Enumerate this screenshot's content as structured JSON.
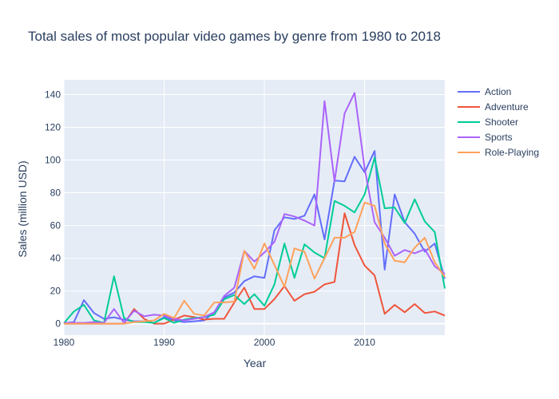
{
  "chart_data": {
    "type": "line",
    "title": "Total sales of most popular video games by genre from 1980 to 2018",
    "xlabel": "Year",
    "ylabel": "Sales (million USD)",
    "xlim": [
      1980,
      2018
    ],
    "ylim": [
      -7,
      149
    ],
    "x_ticks": [
      1980,
      1990,
      2000,
      2010
    ],
    "y_ticks": [
      0,
      20,
      40,
      60,
      80,
      100,
      120,
      140
    ],
    "grid": true,
    "legend_position": "top-right",
    "x": [
      1980,
      1981,
      1982,
      1983,
      1984,
      1985,
      1986,
      1987,
      1988,
      1989,
      1990,
      1991,
      1992,
      1993,
      1994,
      1995,
      1996,
      1997,
      1998,
      1999,
      2000,
      2001,
      2002,
      2003,
      2004,
      2005,
      2006,
      2007,
      2008,
      2009,
      2010,
      2011,
      2012,
      2013,
      2014,
      2015,
      2016,
      2017,
      2018
    ],
    "series": [
      {
        "name": "Action",
        "color": "#636efa",
        "values": [
          0.3,
          1.0,
          14.4,
          6.5,
          3.0,
          3.9,
          2.4,
          1.5,
          1.5,
          0.5,
          4.0,
          2.0,
          1.0,
          1.5,
          2.0,
          7.0,
          16.0,
          19.0,
          26.0,
          29.0,
          28.0,
          57.0,
          65.0,
          64.0,
          66.0,
          79.0,
          51.5,
          87.5,
          87.0,
          102.0,
          92.5,
          105.5,
          33.0,
          79.0,
          62.0,
          55.0,
          44.0,
          49.0,
          27.5
        ]
      },
      {
        "name": "Adventure",
        "color": "#ef553b",
        "values": [
          0.0,
          0.0,
          0.0,
          0.0,
          0.0,
          0.0,
          0.0,
          9.0,
          3.0,
          0.0,
          0.0,
          2.5,
          5.0,
          4.0,
          2.5,
          3.0,
          3.0,
          13.0,
          22.0,
          9.0,
          9.0,
          15.0,
          23.0,
          14.0,
          18.0,
          19.5,
          24.0,
          25.5,
          67.5,
          48.0,
          35.5,
          29.5,
          6.0,
          11.5,
          7.0,
          12.0,
          6.5,
          7.5,
          5.0
        ]
      },
      {
        "name": "Shooter",
        "color": "#00cc96",
        "values": [
          0.3,
          7.5,
          11.5,
          2.0,
          0.5,
          29.0,
          3.5,
          1.0,
          1.0,
          0.5,
          3.5,
          0.5,
          2.5,
          3.5,
          4.0,
          5.5,
          15.0,
          17.5,
          12.0,
          18.0,
          11.0,
          24.0,
          49.0,
          28.0,
          48.5,
          43.5,
          40.0,
          75.0,
          72.0,
          68.0,
          79.0,
          101.5,
          70.5,
          71.0,
          61.5,
          76.0,
          62.5,
          56.0,
          21.5
        ]
      },
      {
        "name": "Sports",
        "color": "#ab63fa",
        "values": [
          0.5,
          0.5,
          0.5,
          1.0,
          0.5,
          9.0,
          0.5,
          8.0,
          4.5,
          5.5,
          5.0,
          3.0,
          2.0,
          3.0,
          4.0,
          7.0,
          17.0,
          22.0,
          44.5,
          38.0,
          43.5,
          50.0,
          67.0,
          65.5,
          63.0,
          60.0,
          136.0,
          87.0,
          128.5,
          141.0,
          95.0,
          62.0,
          52.5,
          41.5,
          45.0,
          43.0,
          45.5,
          35.0,
          30.5
        ]
      },
      {
        "name": "Role-Playing",
        "color": "#ffa15a",
        "values": [
          0.0,
          0.0,
          0.0,
          0.0,
          0.0,
          0.0,
          0.0,
          1.0,
          1.5,
          2.0,
          6.0,
          3.5,
          14.0,
          6.0,
          5.0,
          13.0,
          13.0,
          13.5,
          44.5,
          33.5,
          49.0,
          36.0,
          22.5,
          46.0,
          44.0,
          27.5,
          40.0,
          52.5,
          52.5,
          56.0,
          74.0,
          72.0,
          49.0,
          38.5,
          37.5,
          46.5,
          52.5,
          37.5,
          28.5
        ]
      }
    ]
  }
}
